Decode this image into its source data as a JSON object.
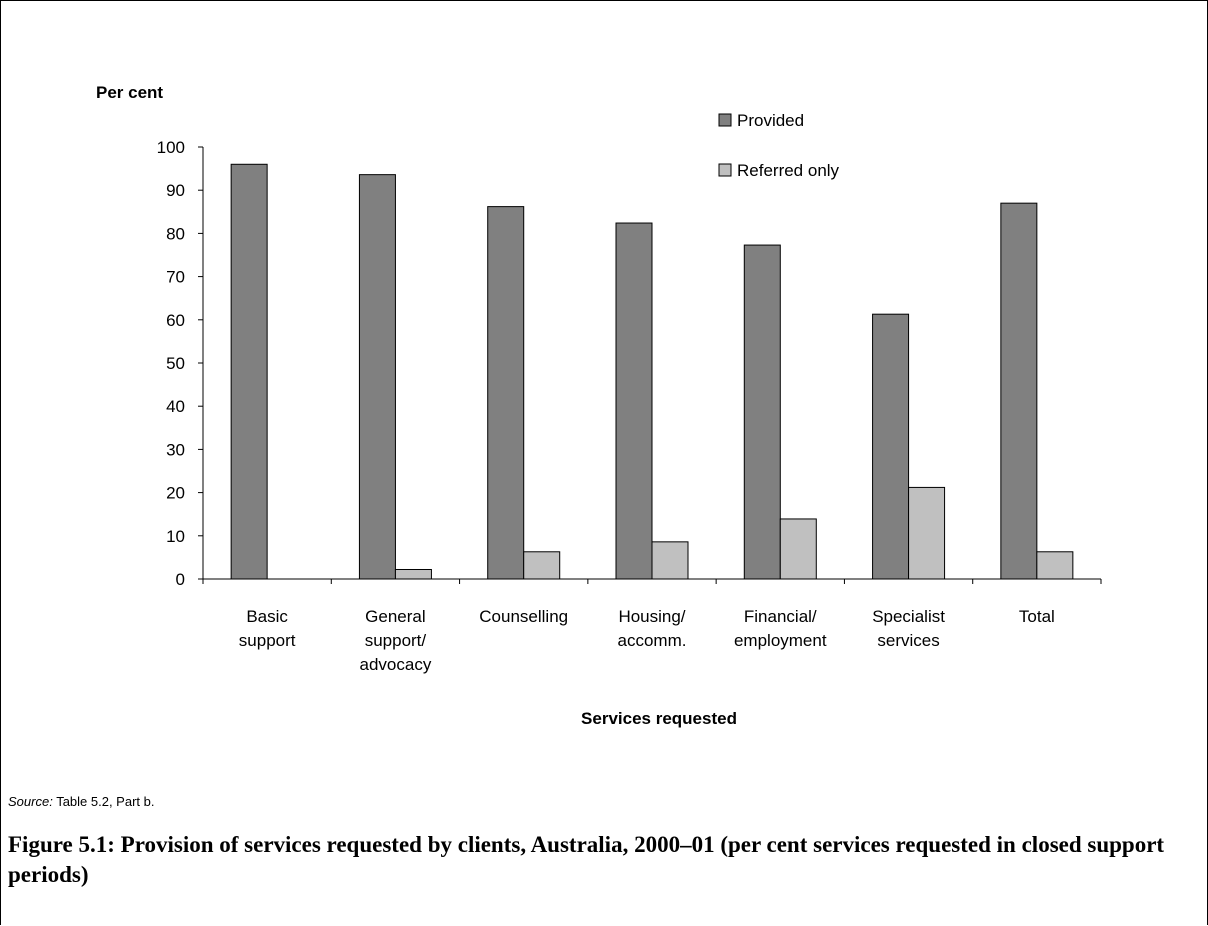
{
  "chart_data": {
    "type": "bar",
    "ylabel": "Per cent",
    "xlabel": "Services requested",
    "ylim": [
      0,
      100
    ],
    "yticks": [
      0,
      10,
      20,
      30,
      40,
      50,
      60,
      70,
      80,
      90,
      100
    ],
    "categories": [
      [
        "Basic",
        "support"
      ],
      [
        "General",
        "support/",
        "advocacy"
      ],
      [
        "Counselling"
      ],
      [
        "Housing/",
        "accomm."
      ],
      [
        "Financial/",
        "employment"
      ],
      [
        "Specialist",
        "services"
      ],
      [
        "Total"
      ]
    ],
    "series": [
      {
        "name": "Provided",
        "color": "#808080",
        "values": [
          96.0,
          93.6,
          86.2,
          82.4,
          77.3,
          61.3,
          87.0
        ]
      },
      {
        "name": "Referred only",
        "color": "#c0c0c0",
        "values": [
          0,
          2.2,
          6.3,
          8.6,
          13.9,
          21.2,
          6.3
        ]
      }
    ],
    "grid": false,
    "legend": "top-right"
  },
  "source": {
    "label": "Source:",
    "text": " Table 5.2, Part b."
  },
  "caption": "Figure 5.1: Provision of services requested by clients, Australia, 2000–01 (per cent services requested in closed support periods)"
}
